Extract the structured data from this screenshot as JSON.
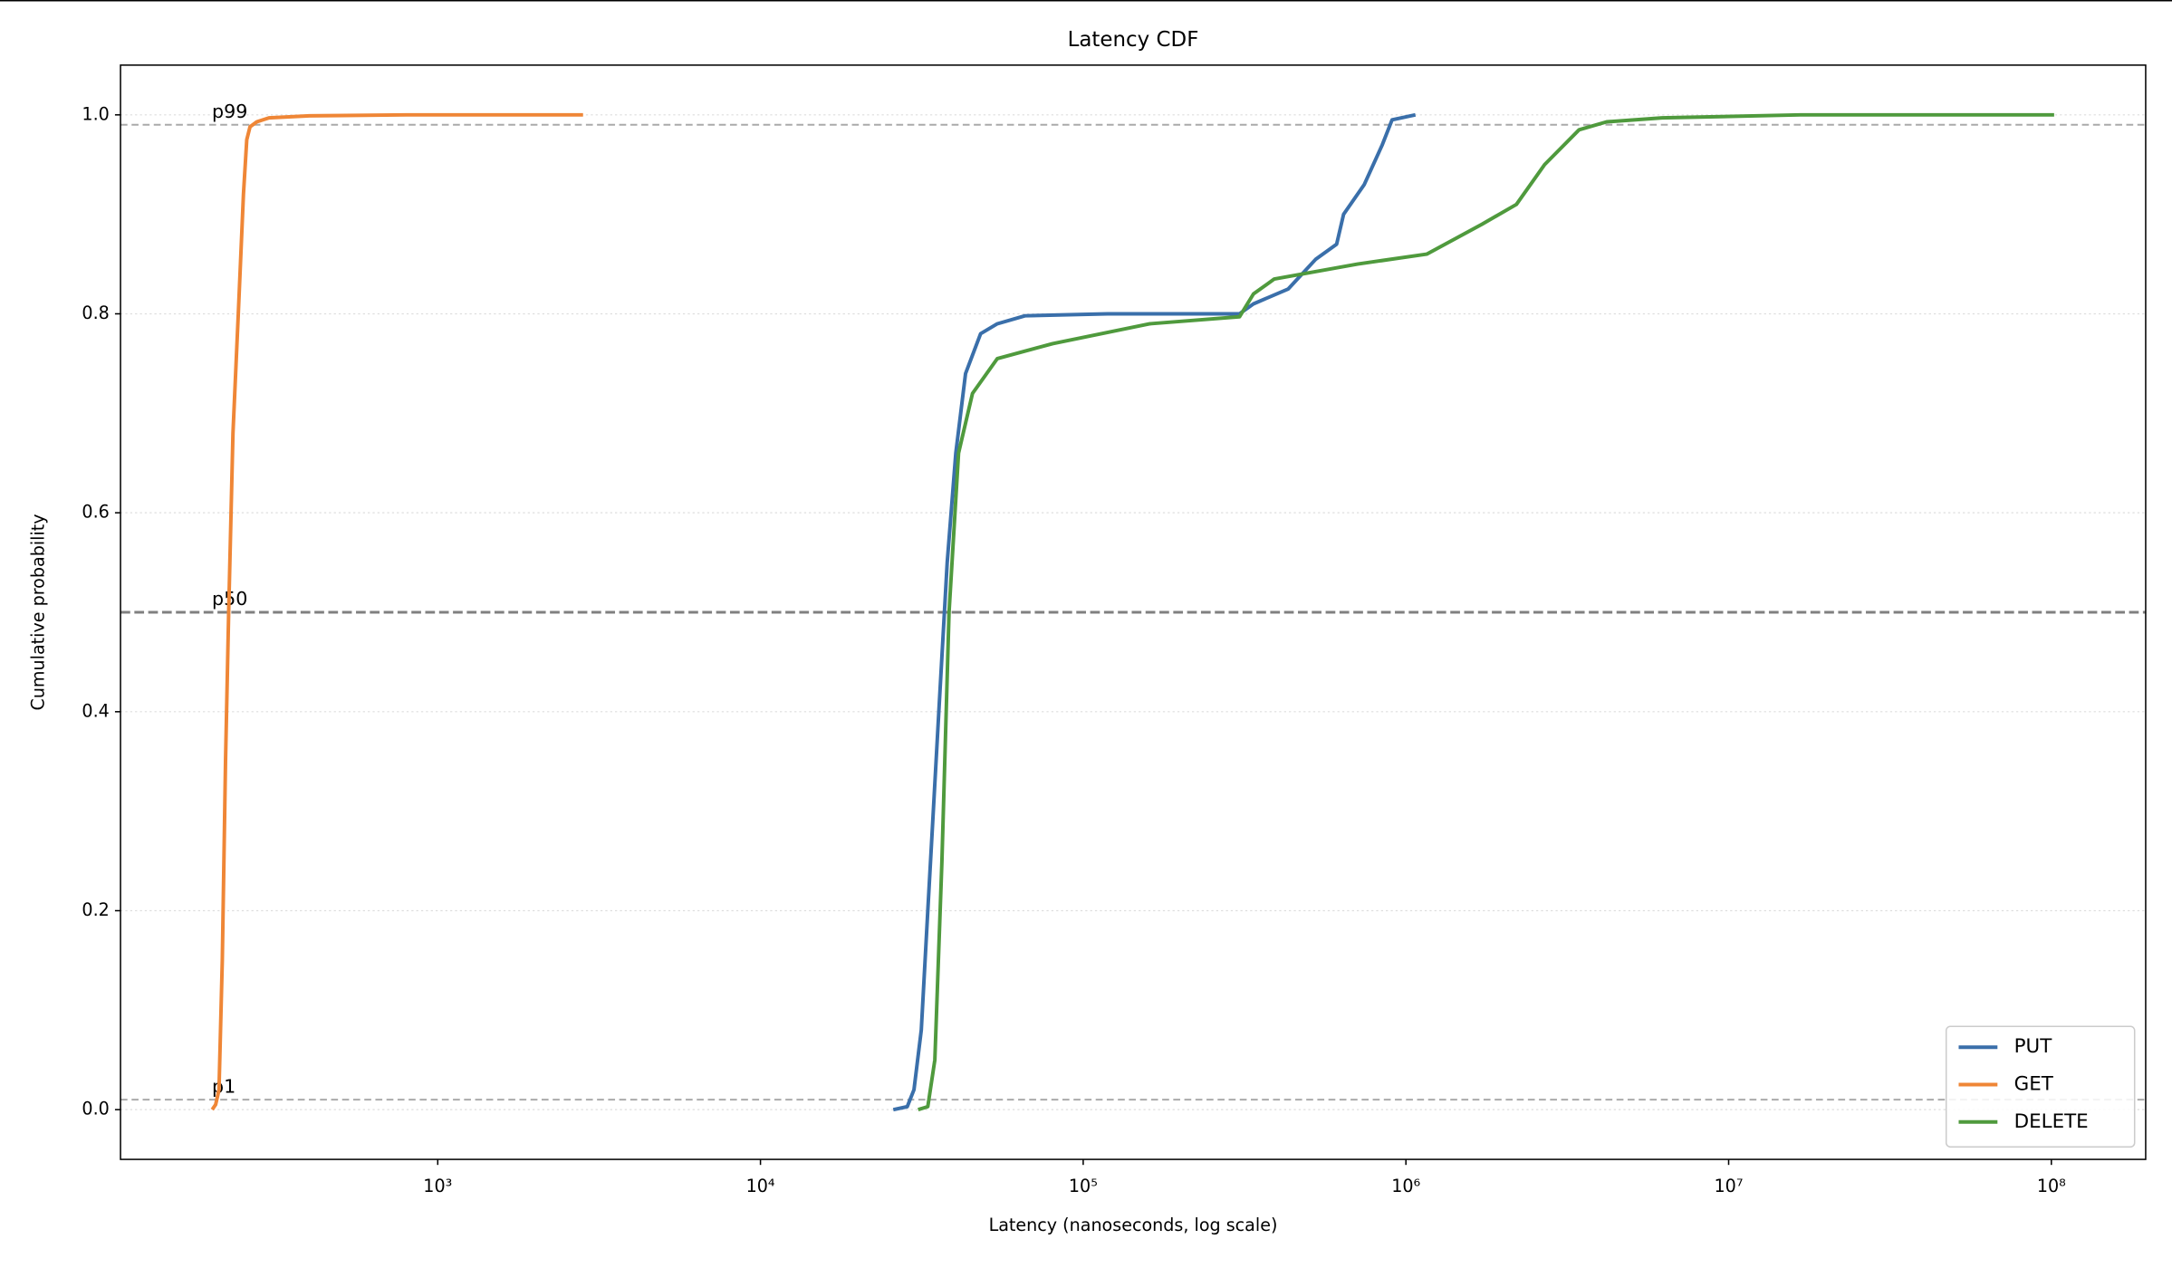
{
  "chart_data": {
    "type": "line",
    "title": "Latency CDF",
    "x_label": "Latency (nanoseconds, log scale)",
    "y_label": "Cumulative probability",
    "xscale": "log",
    "xlim": [
      104,
      196000000
    ],
    "ylim": [
      -0.05,
      1.05
    ],
    "xticks": [
      {
        "value": 1000,
        "label": "10³"
      },
      {
        "value": 10000,
        "label": "10⁴"
      },
      {
        "value": 100000,
        "label": "10⁵"
      },
      {
        "value": 1000000,
        "label": "10⁶"
      },
      {
        "value": 10000000,
        "label": "10⁷"
      },
      {
        "value": 100000000,
        "label": "10⁸"
      }
    ],
    "yticks": [
      {
        "value": 0,
        "label": "0.0"
      },
      {
        "value": 0.2,
        "label": "0.2"
      },
      {
        "value": 0.4,
        "label": "0.4"
      },
      {
        "value": 0.6,
        "label": "0.6"
      },
      {
        "value": 0.8,
        "label": "0.8"
      },
      {
        "value": 1,
        "label": "1.0"
      }
    ],
    "grid": "y",
    "legend": "lower right",
    "hlines": [
      {
        "value": 0.01,
        "label": "p1",
        "color": "#aaaaaa"
      },
      {
        "value": 0.5,
        "label": "p50",
        "color": "#808080"
      },
      {
        "value": 0.99,
        "label": "p99",
        "color": "#aaaaaa"
      }
    ],
    "series": [
      {
        "name": "PUT",
        "color": "#3a6faa",
        "x": [
          25800,
          28500,
          29900,
          31500,
          33000,
          35700,
          37900,
          40300,
          43200,
          48100,
          54200,
          66000,
          119000,
          305000,
          337000,
          432000,
          526000,
          610000,
          641000,
          743000,
          845000,
          906000,
          1070000
        ],
        "values": [
          0,
          0.003,
          0.02,
          0.08,
          0.2,
          0.4,
          0.55,
          0.66,
          0.74,
          0.78,
          0.79,
          0.798,
          0.8,
          0.8,
          0.81,
          0.825,
          0.855,
          0.87,
          0.9,
          0.93,
          0.97,
          0.995,
          1.0
        ]
      },
      {
        "name": "GET",
        "color": "#ef8636",
        "x": [
          200,
          205,
          210,
          215,
          220,
          225,
          232,
          241,
          250,
          256,
          262,
          275,
          300,
          400,
          800,
          2820
        ],
        "values": [
          0,
          0.005,
          0.02,
          0.15,
          0.35,
          0.5,
          0.68,
          0.8,
          0.92,
          0.975,
          0.988,
          0.993,
          0.997,
          0.999,
          1.0,
          1.0
        ]
      },
      {
        "name": "DELETE",
        "color": "#4f9a3d",
        "x": [
          30800,
          33000,
          34700,
          36500,
          38400,
          41100,
          45400,
          54200,
          80400,
          161000,
          305000,
          337000,
          391000,
          708000,
          1160000,
          1720000,
          2200000,
          2690000,
          3440000,
          4190000,
          6220000,
          16700000,
          102000000
        ],
        "values": [
          0,
          0.003,
          0.05,
          0.25,
          0.5,
          0.66,
          0.72,
          0.755,
          0.77,
          0.79,
          0.797,
          0.82,
          0.835,
          0.85,
          0.86,
          0.89,
          0.91,
          0.95,
          0.985,
          0.993,
          0.997,
          1.0,
          1.0
        ]
      }
    ]
  }
}
